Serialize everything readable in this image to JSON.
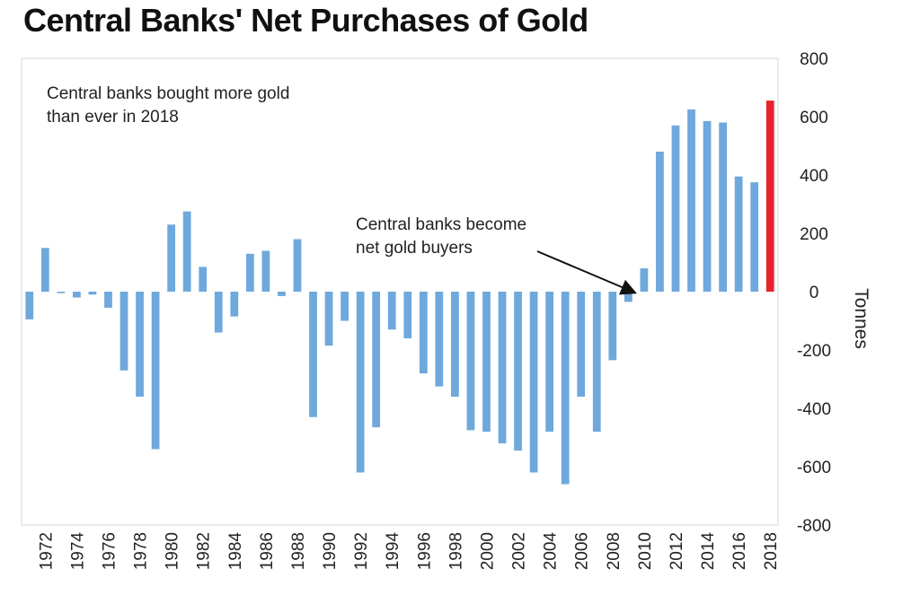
{
  "chart_data": {
    "type": "bar",
    "title": "Central Banks' Net Purchases of Gold",
    "ylabel": "Tonnes",
    "xlabel": "",
    "ylim": [
      -800,
      800
    ],
    "y_ticks": [
      800,
      600,
      400,
      200,
      0,
      -200,
      -400,
      -600,
      -800
    ],
    "x_tick_labels": [
      "1972",
      "1974",
      "1976",
      "1978",
      "1980",
      "1982",
      "1984",
      "1986",
      "1988",
      "1990",
      "1992",
      "1994",
      "1996",
      "1998",
      "2000",
      "2002",
      "2004",
      "2006",
      "2008",
      "2010",
      "2012",
      "2014",
      "2016",
      "2018"
    ],
    "grid": false,
    "categories": [
      1971,
      1972,
      1973,
      1974,
      1975,
      1976,
      1977,
      1978,
      1979,
      1980,
      1981,
      1982,
      1983,
      1984,
      1985,
      1986,
      1987,
      1988,
      1989,
      1990,
      1991,
      1992,
      1993,
      1994,
      1995,
      1996,
      1997,
      1998,
      1999,
      2000,
      2001,
      2002,
      2003,
      2004,
      2005,
      2006,
      2007,
      2008,
      2009,
      2010,
      2011,
      2012,
      2013,
      2014,
      2015,
      2016,
      2017,
      2018
    ],
    "values": [
      -95,
      150,
      -5,
      -20,
      -10,
      -55,
      -270,
      -360,
      -540,
      230,
      275,
      85,
      -140,
      -85,
      130,
      140,
      -15,
      180,
      -430,
      -185,
      -100,
      -620,
      -465,
      -130,
      -160,
      -280,
      -325,
      -360,
      -475,
      -480,
      -520,
      -545,
      -620,
      -480,
      -660,
      -360,
      -480,
      -235,
      -35,
      80,
      480,
      570,
      625,
      585,
      580,
      395,
      375,
      655
    ],
    "highlight_category": 2018,
    "colors": {
      "bar": "#6fa8dc",
      "highlight": "#e8212b"
    },
    "annotations": [
      {
        "text_lines": [
          "Central banks bought more gold",
          "than ever in 2018"
        ]
      },
      {
        "text_lines": [
          "Central banks become",
          "net gold buyers"
        ],
        "arrow_to_category": 2009
      }
    ]
  }
}
